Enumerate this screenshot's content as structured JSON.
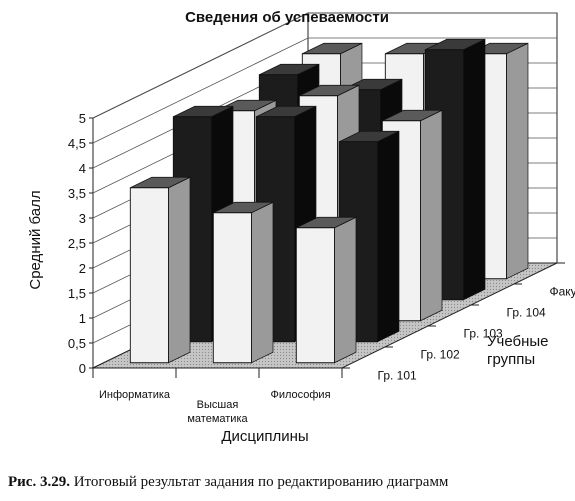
{
  "chart_data": {
    "type": "bar3d",
    "title": "Сведения об успеваемости",
    "ylabel": "Средний балл",
    "xlabel": "Дисциплины",
    "zlabel": [
      "Учебные",
      "группы"
    ],
    "ylim": [
      0,
      5
    ],
    "yticks": [
      "0",
      "0,5",
      "1",
      "1,5",
      "2",
      "2,5",
      "3",
      "3,5",
      "4",
      "4,5",
      "5"
    ],
    "categories": [
      [
        "Информатика"
      ],
      [
        "Высшая",
        "математика"
      ],
      [
        "Философия"
      ]
    ],
    "series": [
      {
        "name": "Гр. 101",
        "values": [
          3.5,
          3.0,
          2.7
        ]
      },
      {
        "name": "Гр. 102",
        "values": [
          4.5,
          4.5,
          4.0
        ]
      },
      {
        "name": "Гр. 103",
        "values": [
          4.2,
          4.5,
          4.0
        ]
      },
      {
        "name": "Гр. 104",
        "values": [
          4.5,
          4.2,
          5.0
        ]
      },
      {
        "name": "Факультет",
        "values": [
          4.5,
          4.5,
          4.5
        ]
      }
    ],
    "grid": true
  },
  "caption": {
    "lead": "Рис. 3.29.",
    "text": "Итоговый результат задания по редактированию диаграмм"
  }
}
